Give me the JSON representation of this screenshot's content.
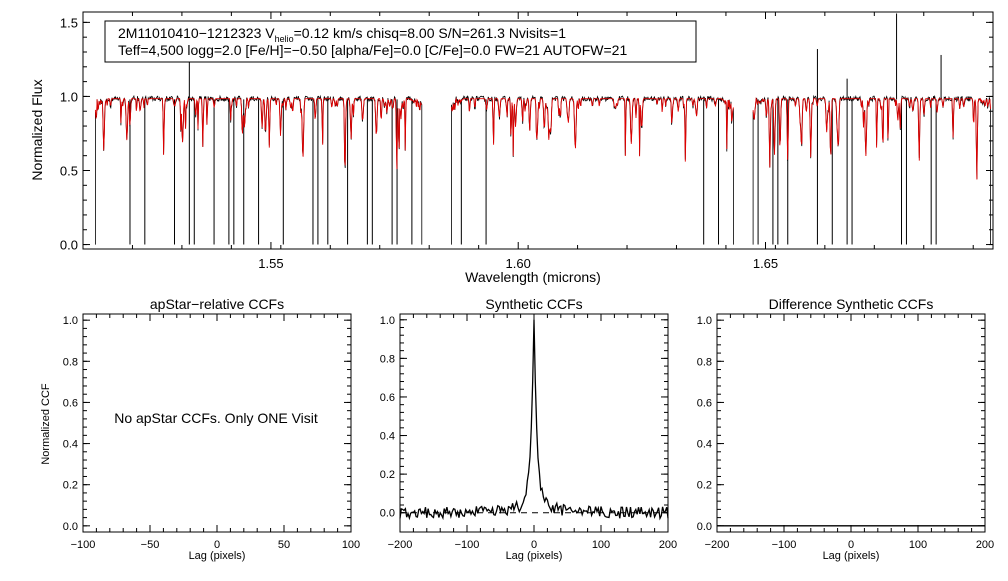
{
  "chart_data": [
    {
      "id": "spectrum",
      "type": "line",
      "ylabel": "Normalized Flux",
      "xlabel": "Wavelength (microns)",
      "xlim": [
        1.512,
        1.696
      ],
      "ylim": [
        -0.03,
        1.57
      ],
      "xticks": [
        {
          "v": 1.55,
          "label": "1.55"
        },
        {
          "v": 1.6,
          "label": "1.60"
        },
        {
          "v": 1.65,
          "label": "1.65"
        }
      ],
      "yticks": [
        {
          "v": 0.0,
          "label": "0.0"
        },
        {
          "v": 0.5,
          "label": "0.5"
        },
        {
          "v": 1.0,
          "label": "1.0"
        },
        {
          "v": 1.5,
          "label": "1.5"
        }
      ],
      "annotation": {
        "line1_parts": [
          "2M11010410−1212323  V",
          "helio",
          "=0.12 km/s  chisq=8.00  S/N=261.3  Nvisits=1"
        ],
        "line2": "Teff=4,500 logg=2.0 [Fe/H]=−0.50 [alpha/Fe]=0.0 [C/Fe]=0.0 FW=21 AUTOFW=21"
      },
      "chips": [
        [
          1.5145,
          1.5805
        ],
        [
          1.5865,
          1.6435
        ],
        [
          1.6475,
          1.6955
        ]
      ],
      "gap_dropouts": [
        1.5215,
        1.5245,
        1.5305,
        1.5335,
        1.5345,
        1.5385,
        1.5415,
        1.5425,
        1.5445,
        1.5475,
        1.5525,
        1.5585,
        1.5595,
        1.5615,
        1.5655,
        1.5695,
        1.5705,
        1.5745,
        1.5755,
        1.5785,
        1.5885,
        1.5935,
        1.6375,
        1.6405,
        1.6485,
        1.6515,
        1.6525,
        1.6545,
        1.6605,
        1.6635,
        1.6665,
        1.6675,
        1.6775,
        1.6785,
        1.6835,
        1.6845
      ],
      "emission_spikes": [
        {
          "x": 1.5335,
          "y": 1.28
        },
        {
          "x": 1.6605,
          "y": 1.32
        },
        {
          "x": 1.6665,
          "y": 1.12
        },
        {
          "x": 1.6765,
          "y": 1.56
        },
        {
          "x": 1.6855,
          "y": 1.28
        }
      ],
      "series": [
        {
          "name": "observed",
          "color": "#000000"
        },
        {
          "name": "synthetic",
          "color": "#e00000"
        }
      ]
    },
    {
      "id": "apstar_ccf",
      "type": "line",
      "title": "apStar−relative CCFs",
      "ylabel": "Normalized CCF",
      "xlabel": "Lag (pixels)",
      "xlim": [
        -100,
        100
      ],
      "ylim": [
        -0.03,
        1.03
      ],
      "xticks": [
        {
          "v": -100,
          "label": "−100"
        },
        {
          "v": -50,
          "label": "−50"
        },
        {
          "v": 0,
          "label": "0"
        },
        {
          "v": 50,
          "label": "50"
        },
        {
          "v": 100,
          "label": "100"
        }
      ],
      "yticks": [
        {
          "v": 0.0,
          "label": "0.0"
        },
        {
          "v": 0.2,
          "label": "0.2"
        },
        {
          "v": 0.4,
          "label": "0.4"
        },
        {
          "v": 0.6,
          "label": "0.6"
        },
        {
          "v": 0.8,
          "label": "0.8"
        },
        {
          "v": 1.0,
          "label": "1.0"
        }
      ],
      "message": "No apStar CCFs.  Only ONE Visit"
    },
    {
      "id": "synthetic_ccf",
      "type": "line",
      "title": "Synthetic CCFs",
      "xlabel": "Lag (pixels)",
      "xlim": [
        -200,
        200
      ],
      "ylim": [
        -0.1,
        1.03
      ],
      "xticks": [
        {
          "v": -200,
          "label": "−200"
        },
        {
          "v": -100,
          "label": "−100"
        },
        {
          "v": 0,
          "label": "0"
        },
        {
          "v": 100,
          "label": "100"
        },
        {
          "v": 200,
          "label": "200"
        }
      ],
      "yticks": [
        {
          "v": 0.0,
          "label": "0.0"
        },
        {
          "v": 0.2,
          "label": "0.2"
        },
        {
          "v": 0.4,
          "label": "0.4"
        },
        {
          "v": 0.6,
          "label": "0.6"
        },
        {
          "v": 0.8,
          "label": "0.8"
        },
        {
          "v": 1.0,
          "label": "1.0"
        }
      ],
      "peak": {
        "lag": 0,
        "value": 1.0
      },
      "baseline": 0.0
    },
    {
      "id": "difference_ccf",
      "type": "line",
      "title": "Difference Synthetic CCFs",
      "xlabel": "Lag (pixels)",
      "xlim": [
        -200,
        200
      ],
      "ylim": [
        -0.03,
        1.03
      ],
      "xticks": [
        {
          "v": -200,
          "label": "−200"
        },
        {
          "v": -100,
          "label": "−100"
        },
        {
          "v": 0,
          "label": "0"
        },
        {
          "v": 100,
          "label": "100"
        },
        {
          "v": 200,
          "label": "200"
        }
      ],
      "yticks": [
        {
          "v": 0.0,
          "label": "0.0"
        },
        {
          "v": 0.2,
          "label": "0.2"
        },
        {
          "v": 0.4,
          "label": "0.4"
        },
        {
          "v": 0.6,
          "label": "0.6"
        },
        {
          "v": 0.8,
          "label": "0.8"
        },
        {
          "v": 1.0,
          "label": "1.0"
        }
      ],
      "values": [
        0,
        0
      ]
    }
  ]
}
